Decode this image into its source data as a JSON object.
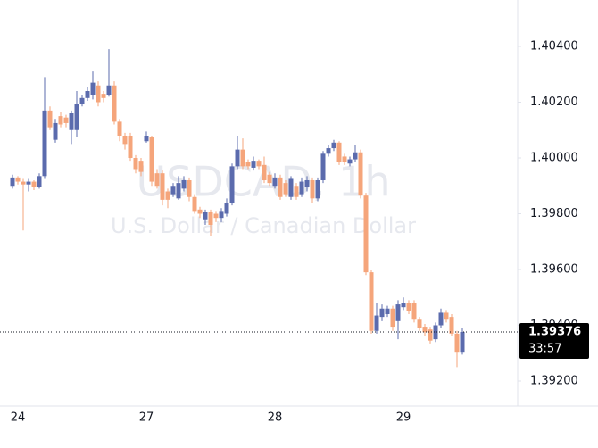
{
  "chart_data": {
    "type": "candlestick",
    "watermark": "USDCAD, 1h",
    "watermark_subtitle": "U.S. Dollar / Canadian Dollar",
    "up_color": "#5b6bad",
    "down_color": "#f5a57b",
    "ylim": [
      1.391104,
      1.405664
    ],
    "yticks": [
      {
        "value": 1.392,
        "label": "1.39200"
      },
      {
        "value": 1.394,
        "label": "1.39400"
      },
      {
        "value": 1.396,
        "label": "1.39600"
      },
      {
        "value": 1.398,
        "label": "1.39800"
      },
      {
        "value": 1.4,
        "label": "1.40000"
      },
      {
        "value": 1.402,
        "label": "1.40200"
      },
      {
        "value": 1.404,
        "label": "1.40400"
      }
    ],
    "last_price": 1.39376,
    "countdown": "33:57",
    "categories": [
      null,
      "24",
      null,
      null,
      null,
      null,
      null,
      null,
      null,
      null,
      null,
      null,
      null,
      null,
      null,
      null,
      null,
      null,
      null,
      null,
      null,
      null,
      null,
      null,
      null,
      "27",
      null,
      null,
      null,
      null,
      null,
      null,
      null,
      null,
      null,
      null,
      null,
      null,
      null,
      null,
      null,
      null,
      null,
      null,
      null,
      null,
      null,
      null,
      null,
      "28",
      null,
      null,
      null,
      null,
      null,
      null,
      null,
      null,
      null,
      null,
      null,
      null,
      null,
      null,
      null,
      null,
      null,
      null,
      null,
      null,
      null,
      null,
      null,
      "29",
      null,
      null,
      null,
      null,
      null,
      null,
      null,
      null,
      null,
      null,
      null
    ],
    "ohlc": [
      [
        1.399,
        1.3994,
        1.3989,
        1.3993
      ],
      [
        1.3993,
        1.39935,
        1.39905,
        1.39915
      ],
      [
        1.39915,
        1.39925,
        1.3974,
        1.39905
      ],
      [
        1.39905,
        1.39925,
        1.3988,
        1.39915
      ],
      [
        1.39915,
        1.3992,
        1.39885,
        1.39895
      ],
      [
        1.39895,
        1.39945,
        1.3989,
        1.39935
      ],
      [
        1.39935,
        1.4029,
        1.39925,
        1.4017
      ],
      [
        1.4017,
        1.40185,
        1.401,
        1.4011
      ],
      [
        1.40065,
        1.4014,
        1.40055,
        1.40125
      ],
      [
        1.4015,
        1.40165,
        1.4011,
        1.4012
      ],
      [
        1.40145,
        1.40155,
        1.4011,
        1.40125
      ],
      [
        1.401,
        1.4017,
        1.4005,
        1.4016
      ],
      [
        1.401,
        1.4024,
        1.40075,
        1.40195
      ],
      [
        1.40195,
        1.40225,
        1.40185,
        1.40215
      ],
      [
        1.40215,
        1.40255,
        1.40205,
        1.4024
      ],
      [
        1.40225,
        1.4031,
        1.4021,
        1.4027
      ],
      [
        1.4026,
        1.40275,
        1.40185,
        1.402
      ],
      [
        1.4023,
        1.4024,
        1.402,
        1.40215
      ],
      [
        1.40225,
        1.4039,
        1.4022,
        1.4026
      ],
      [
        1.4026,
        1.40275,
        1.4012,
        1.4013
      ],
      [
        1.4013,
        1.4014,
        1.4006,
        1.4008
      ],
      [
        1.4008,
        1.4009,
        1.4003,
        1.4005
      ],
      [
        1.4008,
        1.4009,
        1.3999,
        1.4
      ],
      [
        1.4,
        1.4001,
        1.39945,
        1.3996
      ],
      [
        1.3999,
        1.4,
        1.39935,
        1.3995
      ],
      [
        1.4006,
        1.40095,
        1.40055,
        1.4008
      ],
      [
        1.40075,
        1.4008,
        1.399,
        1.39915
      ],
      [
        1.39945,
        1.3996,
        1.3989,
        1.399
      ],
      [
        1.39945,
        1.39955,
        1.3983,
        1.3985
      ],
      [
        1.3988,
        1.3989,
        1.3982,
        1.3985
      ],
      [
        1.3987,
        1.3991,
        1.3986,
        1.399
      ],
      [
        1.39855,
        1.39935,
        1.3985,
        1.3991
      ],
      [
        1.3989,
        1.39935,
        1.3988,
        1.3992
      ],
      [
        1.3992,
        1.3993,
        1.39845,
        1.3986
      ],
      [
        1.3986,
        1.3987,
        1.398,
        1.3981
      ],
      [
        1.39815,
        1.39825,
        1.39785,
        1.398
      ],
      [
        1.3978,
        1.39815,
        1.3976,
        1.39805
      ],
      [
        1.39805,
        1.39815,
        1.3972,
        1.3976
      ],
      [
        1.398,
        1.3981,
        1.3977,
        1.39785
      ],
      [
        1.39785,
        1.3982,
        1.3977,
        1.3981
      ],
      [
        1.398,
        1.39855,
        1.3979,
        1.3984
      ],
      [
        1.3984,
        1.3998,
        1.3983,
        1.3997
      ],
      [
        1.3997,
        1.4008,
        1.3996,
        1.4003
      ],
      [
        1.4003,
        1.4007,
        1.3996,
        1.3997
      ],
      [
        1.39985,
        1.39995,
        1.3996,
        1.3997
      ],
      [
        1.39965,
        1.40005,
        1.39955,
        1.3999
      ],
      [
        1.3999,
        1.39995,
        1.3996,
        1.3997
      ],
      [
        1.39975,
        1.40005,
        1.3991,
        1.3992
      ],
      [
        1.3994,
        1.3995,
        1.399,
        1.3991
      ],
      [
        1.399,
        1.39945,
        1.3989,
        1.3993
      ],
      [
        1.3993,
        1.3994,
        1.3985,
        1.3986
      ],
      [
        1.3991,
        1.3992,
        1.3986,
        1.3987
      ],
      [
        1.3986,
        1.39935,
        1.3985,
        1.39925
      ],
      [
        1.399,
        1.3991,
        1.3985,
        1.3986
      ],
      [
        1.3987,
        1.3993,
        1.3986,
        1.39915
      ],
      [
        1.39895,
        1.39935,
        1.3988,
        1.3992
      ],
      [
        1.3992,
        1.3993,
        1.3984,
        1.39855
      ],
      [
        1.39855,
        1.3993,
        1.39845,
        1.3992
      ],
      [
        1.3992,
        1.40025,
        1.3991,
        1.40015
      ],
      [
        1.40015,
        1.40045,
        1.40005,
        1.40035
      ],
      [
        1.40035,
        1.40065,
        1.40025,
        1.40055
      ],
      [
        1.40055,
        1.4006,
        1.39975,
        1.39985
      ],
      [
        1.40005,
        1.40015,
        1.39975,
        1.39985
      ],
      [
        1.3998,
        1.40005,
        1.3997,
        1.39995
      ],
      [
        1.39995,
        1.40045,
        1.39985,
        1.4002
      ],
      [
        1.4002,
        1.4003,
        1.39855,
        1.39865
      ],
      [
        1.39865,
        1.39875,
        1.3958,
        1.3959
      ],
      [
        1.3959,
        1.396,
        1.3937,
        1.3938
      ],
      [
        1.3938,
        1.3948,
        1.3937,
        1.39435
      ],
      [
        1.3943,
        1.39475,
        1.39415,
        1.3946
      ],
      [
        1.3944,
        1.3947,
        1.3943,
        1.3946
      ],
      [
        1.3946,
        1.3947,
        1.3938,
        1.39395
      ],
      [
        1.39415,
        1.3949,
        1.3935,
        1.39475
      ],
      [
        1.39465,
        1.395,
        1.39455,
        1.3948
      ],
      [
        1.3948,
        1.3949,
        1.3944,
        1.3945
      ],
      [
        1.3948,
        1.3949,
        1.3941,
        1.3942
      ],
      [
        1.3942,
        1.3943,
        1.3938,
        1.3939
      ],
      [
        1.39395,
        1.39405,
        1.3936,
        1.39375
      ],
      [
        1.39385,
        1.39395,
        1.39335,
        1.39345
      ],
      [
        1.3935,
        1.3941,
        1.3934,
        1.394
      ],
      [
        1.394,
        1.3946,
        1.3939,
        1.39445
      ],
      [
        1.39445,
        1.39455,
        1.3941,
        1.3942
      ],
      [
        1.3943,
        1.3944,
        1.3936,
        1.3937
      ],
      [
        1.3937,
        1.3938,
        1.3925,
        1.39305
      ],
      [
        1.39305,
        1.3939,
        1.39295,
        1.39376
      ]
    ]
  }
}
